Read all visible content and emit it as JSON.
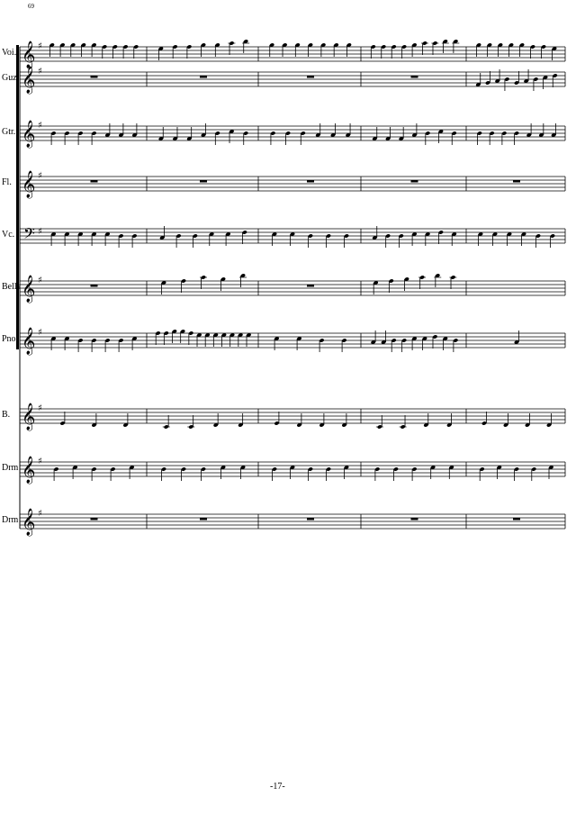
{
  "score": {
    "measure_number": "69",
    "page_number": "-17-",
    "key_signature": "1 sharp",
    "staves": [
      {
        "label": "Voi.",
        "clef": "treble",
        "measures": [
          [
            5,
            5,
            5,
            5,
            5,
            4,
            4,
            4,
            4
          ],
          [
            3,
            4,
            4,
            5,
            5,
            6,
            7
          ],
          [
            5,
            5,
            5,
            5,
            5,
            5,
            5
          ],
          [
            4,
            4,
            4,
            4,
            5,
            6,
            6,
            7,
            7
          ],
          [
            5,
            5,
            5,
            5,
            5,
            4,
            4,
            3
          ]
        ]
      },
      {
        "label": "Guz.",
        "clef": "treble",
        "measures": [
          "rest",
          "rest",
          "rest",
          "rest",
          [
            -3,
            -2,
            -1,
            0,
            -2,
            -1,
            0,
            1,
            2
          ]
        ]
      },
      {
        "label": "Gtr.",
        "clef": "treble",
        "measures": [
          [
            0,
            0,
            0,
            0,
            -1,
            -1,
            -1
          ],
          [
            -3,
            -3,
            -3,
            -1,
            0,
            1,
            0
          ],
          [
            0,
            0,
            0,
            -1,
            -1,
            -1
          ],
          [
            -3,
            -3,
            -3,
            -1,
            0,
            1,
            0
          ],
          [
            0,
            0,
            0,
            0,
            -1,
            -1,
            -1
          ]
        ]
      },
      {
        "label": "Fl.",
        "clef": "treble",
        "measures": [
          "rest",
          "rest",
          "rest",
          "rest",
          "rest"
        ]
      },
      {
        "label": "Vc.",
        "clef": "bass",
        "measures": [
          [
            1,
            1,
            1,
            1,
            1,
            0,
            0
          ],
          [
            -1,
            0,
            0,
            1,
            1,
            2
          ],
          [
            1,
            1,
            0,
            0,
            0
          ],
          [
            -1,
            0,
            0,
            1,
            1,
            2,
            1
          ],
          [
            1,
            1,
            1,
            1,
            0,
            0
          ]
        ]
      },
      {
        "label": "Bells",
        "clef": "treble",
        "measures": [
          "rest",
          [
            3,
            4,
            6,
            5,
            7
          ],
          "rest",
          [
            3,
            4,
            5,
            6,
            7,
            6
          ],
          []
        ]
      },
      {
        "label": "Pno.",
        "clef": "treble",
        "measures": [
          [
            1,
            1,
            0,
            0,
            0,
            0,
            1
          ],
          [
            4,
            4,
            5,
            5,
            4,
            3,
            3,
            3,
            3,
            3,
            3,
            3
          ],
          [
            1,
            1,
            0,
            0
          ],
          [
            -1,
            -1,
            0,
            0,
            1,
            1,
            2,
            1,
            0
          ],
          [
            -1
          ]
        ]
      },
      {
        "label": "B.",
        "clef": "treble",
        "measures": [
          [
            -4,
            -5,
            -5
          ],
          [
            -6,
            -6,
            -5,
            -5
          ],
          [
            -4,
            -5,
            -5,
            -5
          ],
          [
            -6,
            -6,
            -5,
            -5
          ],
          [
            -4,
            -5,
            -5,
            -5
          ]
        ]
      },
      {
        "label": "Drm",
        "clef": "treble",
        "measures": [
          [
            0,
            1,
            0,
            0,
            1
          ],
          [
            0,
            0,
            0,
            1,
            1
          ],
          [
            0,
            1,
            0,
            0,
            1
          ],
          [
            0,
            0,
            0,
            1,
            1
          ],
          [
            0,
            1,
            0,
            0,
            1
          ]
        ]
      },
      {
        "label": "Drm",
        "clef": "treble",
        "measures": [
          "rest",
          "rest",
          "rest",
          "rest",
          "rest"
        ]
      }
    ]
  }
}
